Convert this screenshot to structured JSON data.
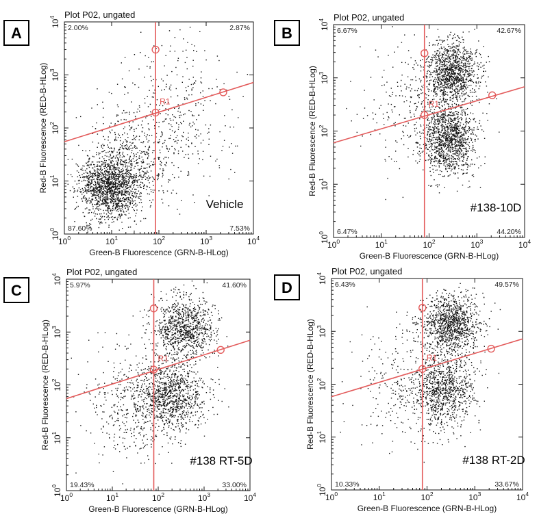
{
  "chart_data": [
    {
      "type": "scatter",
      "panel": "A",
      "title": "Plot P02, ungated",
      "sample": "Vehicle",
      "xlabel": "Green-B Fluorescence (GRN-B-HLog)",
      "ylabel": "Red-B Fluorescence (RED-B-HLog)",
      "xscale": "log",
      "yscale": "log",
      "xlim": [
        1,
        10000
      ],
      "ylim": [
        1,
        10000
      ],
      "x_ticks": [
        {
          "base": "10",
          "exp": "0"
        },
        {
          "base": "10",
          "exp": "1"
        },
        {
          "base": "10",
          "exp": "2"
        },
        {
          "base": "10",
          "exp": "3"
        },
        {
          "base": "10",
          "exp": "4"
        }
      ],
      "y_ticks": [
        {
          "base": "10",
          "exp": "0"
        },
        {
          "base": "10",
          "exp": "1"
        },
        {
          "base": "10",
          "exp": "2"
        },
        {
          "base": "10",
          "exp": "3"
        },
        {
          "base": "10",
          "exp": "4"
        }
      ],
      "gate": {
        "label": "R1",
        "vertical_x": 85,
        "line_start": [
          1,
          55
        ],
        "line_end": [
          10000,
          720
        ],
        "handles": [
          [
            85,
            3000
          ],
          [
            85,
            195
          ],
          [
            2300,
            470
          ]
        ]
      },
      "quadrants": {
        "upper_left": "2.00%",
        "upper_right": "2.87%",
        "lower_left": "87.60%",
        "lower_right": "7.53%"
      },
      "populations": [
        {
          "center_log": [
            0.95,
            0.9
          ],
          "spread_log": [
            0.33,
            0.3
          ],
          "count": 1500
        },
        {
          "center_log": [
            1.4,
            1.45
          ],
          "spread_log": [
            0.5,
            0.45
          ],
          "count": 450
        },
        {
          "center_log": [
            2.35,
            2.3
          ],
          "spread_log": [
            0.65,
            0.75
          ],
          "count": 380
        }
      ],
      "seed": 11
    },
    {
      "type": "scatter",
      "panel": "B",
      "title": "Plot P02, ungated",
      "sample": "#138-10D",
      "xlabel": "Green-B Fluorescence (GRN-B-HLog)",
      "ylabel": "Red-B Fluorescence (RED-B-HLog)",
      "xscale": "log",
      "yscale": "log",
      "xlim": [
        1,
        10000
      ],
      "ylim": [
        1,
        10000
      ],
      "x_ticks": [
        {
          "base": "10",
          "exp": "0"
        },
        {
          "base": "10",
          "exp": "1"
        },
        {
          "base": "10",
          "exp": "2"
        },
        {
          "base": "10",
          "exp": "3"
        },
        {
          "base": "10",
          "exp": "4"
        }
      ],
      "y_ticks": [
        {
          "base": "10",
          "exp": "0"
        },
        {
          "base": "10",
          "exp": "1"
        },
        {
          "base": "10",
          "exp": "2"
        },
        {
          "base": "10",
          "exp": "3"
        },
        {
          "base": "10",
          "exp": "4"
        }
      ],
      "gate": {
        "label": "R1",
        "vertical_x": 80,
        "line_start": [
          1,
          60
        ],
        "line_end": [
          10000,
          680
        ],
        "handles": [
          [
            80,
            2900
          ],
          [
            80,
            200
          ],
          [
            2100,
            470
          ]
        ]
      },
      "quadrants": {
        "upper_left": "6.67%",
        "upper_right": "42.67%",
        "lower_left": "6.47%",
        "lower_right": "44.20%"
      },
      "populations": [
        {
          "center_log": [
            2.45,
            3.1
          ],
          "spread_log": [
            0.28,
            0.3
          ],
          "count": 1150
        },
        {
          "center_log": [
            2.4,
            1.85
          ],
          "spread_log": [
            0.28,
            0.32
          ],
          "count": 1200
        },
        {
          "center_log": [
            1.7,
            2.4
          ],
          "spread_log": [
            0.55,
            0.6
          ],
          "count": 260
        }
      ],
      "seed": 23
    },
    {
      "type": "scatter",
      "panel": "C",
      "title": "Plot P02, ungated",
      "sample": "#138 RT-5D",
      "xlabel": "Green-B Fluorescence (GRN-B-HLog)",
      "ylabel": "Red-B Fluorescence (RED-B-HLog)",
      "xscale": "log",
      "yscale": "log",
      "xlim": [
        1,
        10000
      ],
      "ylim": [
        1,
        10000
      ],
      "x_ticks": [
        {
          "base": "10",
          "exp": "0"
        },
        {
          "base": "10",
          "exp": "1"
        },
        {
          "base": "10",
          "exp": "2"
        },
        {
          "base": "10",
          "exp": "3"
        },
        {
          "base": "10",
          "exp": "4"
        }
      ],
      "y_ticks": [
        {
          "base": "10",
          "exp": "0"
        },
        {
          "base": "10",
          "exp": "1"
        },
        {
          "base": "10",
          "exp": "2"
        },
        {
          "base": "10",
          "exp": "3"
        },
        {
          "base": "10",
          "exp": "4"
        }
      ],
      "gate": {
        "label": "R1",
        "vertical_x": 80,
        "line_start": [
          1,
          55
        ],
        "line_end": [
          10000,
          700
        ],
        "handles": [
          [
            80,
            2800
          ],
          [
            80,
            195
          ],
          [
            2300,
            460
          ]
        ]
      },
      "quadrants": {
        "upper_left": "5.97%",
        "upper_right": "41.60%",
        "lower_left": "19.43%",
        "lower_right": "33.00%"
      },
      "populations": [
        {
          "center_log": [
            2.55,
            3.1
          ],
          "spread_log": [
            0.33,
            0.3
          ],
          "count": 950
        },
        {
          "center_log": [
            2.3,
            1.8
          ],
          "spread_log": [
            0.38,
            0.35
          ],
          "count": 950
        },
        {
          "center_log": [
            1.5,
            1.6
          ],
          "spread_log": [
            0.55,
            0.55
          ],
          "count": 450
        }
      ],
      "seed": 37
    },
    {
      "type": "scatter",
      "panel": "D",
      "title": "Plot P02, ungated",
      "sample": "#138 RT-2D",
      "xlabel": "Green-B Fluorescence (GRN-B-HLog)",
      "ylabel": "Red-B Fluorescence (RED-B-HLog)",
      "xscale": "log",
      "yscale": "log",
      "xlim": [
        1,
        10000
      ],
      "ylim": [
        1,
        10000
      ],
      "x_ticks": [
        {
          "base": "10",
          "exp": "0"
        },
        {
          "base": "10",
          "exp": "1"
        },
        {
          "base": "10",
          "exp": "2"
        },
        {
          "base": "10",
          "exp": "3"
        },
        {
          "base": "10",
          "exp": "4"
        }
      ],
      "y_ticks": [
        {
          "base": "10",
          "exp": "0"
        },
        {
          "base": "10",
          "exp": "1"
        },
        {
          "base": "10",
          "exp": "2"
        },
        {
          "base": "10",
          "exp": "3"
        },
        {
          "base": "10",
          "exp": "4"
        }
      ],
      "gate": {
        "label": "R1",
        "vertical_x": 80,
        "line_start": [
          1,
          58
        ],
        "line_end": [
          10000,
          720
        ],
        "handles": [
          [
            80,
            2800
          ],
          [
            80,
            195
          ],
          [
            2200,
            470
          ]
        ]
      },
      "quadrants": {
        "upper_left": "6.43%",
        "upper_right": "49.57%",
        "lower_left": "10.33%",
        "lower_right": "33.67%"
      },
      "populations": [
        {
          "center_log": [
            2.5,
            3.15
          ],
          "spread_log": [
            0.3,
            0.28
          ],
          "count": 1100
        },
        {
          "center_log": [
            2.35,
            1.9
          ],
          "spread_log": [
            0.32,
            0.33
          ],
          "count": 900
        },
        {
          "center_log": [
            1.6,
            2.0
          ],
          "spread_log": [
            0.6,
            0.6
          ],
          "count": 300
        }
      ],
      "seed": 53
    }
  ]
}
